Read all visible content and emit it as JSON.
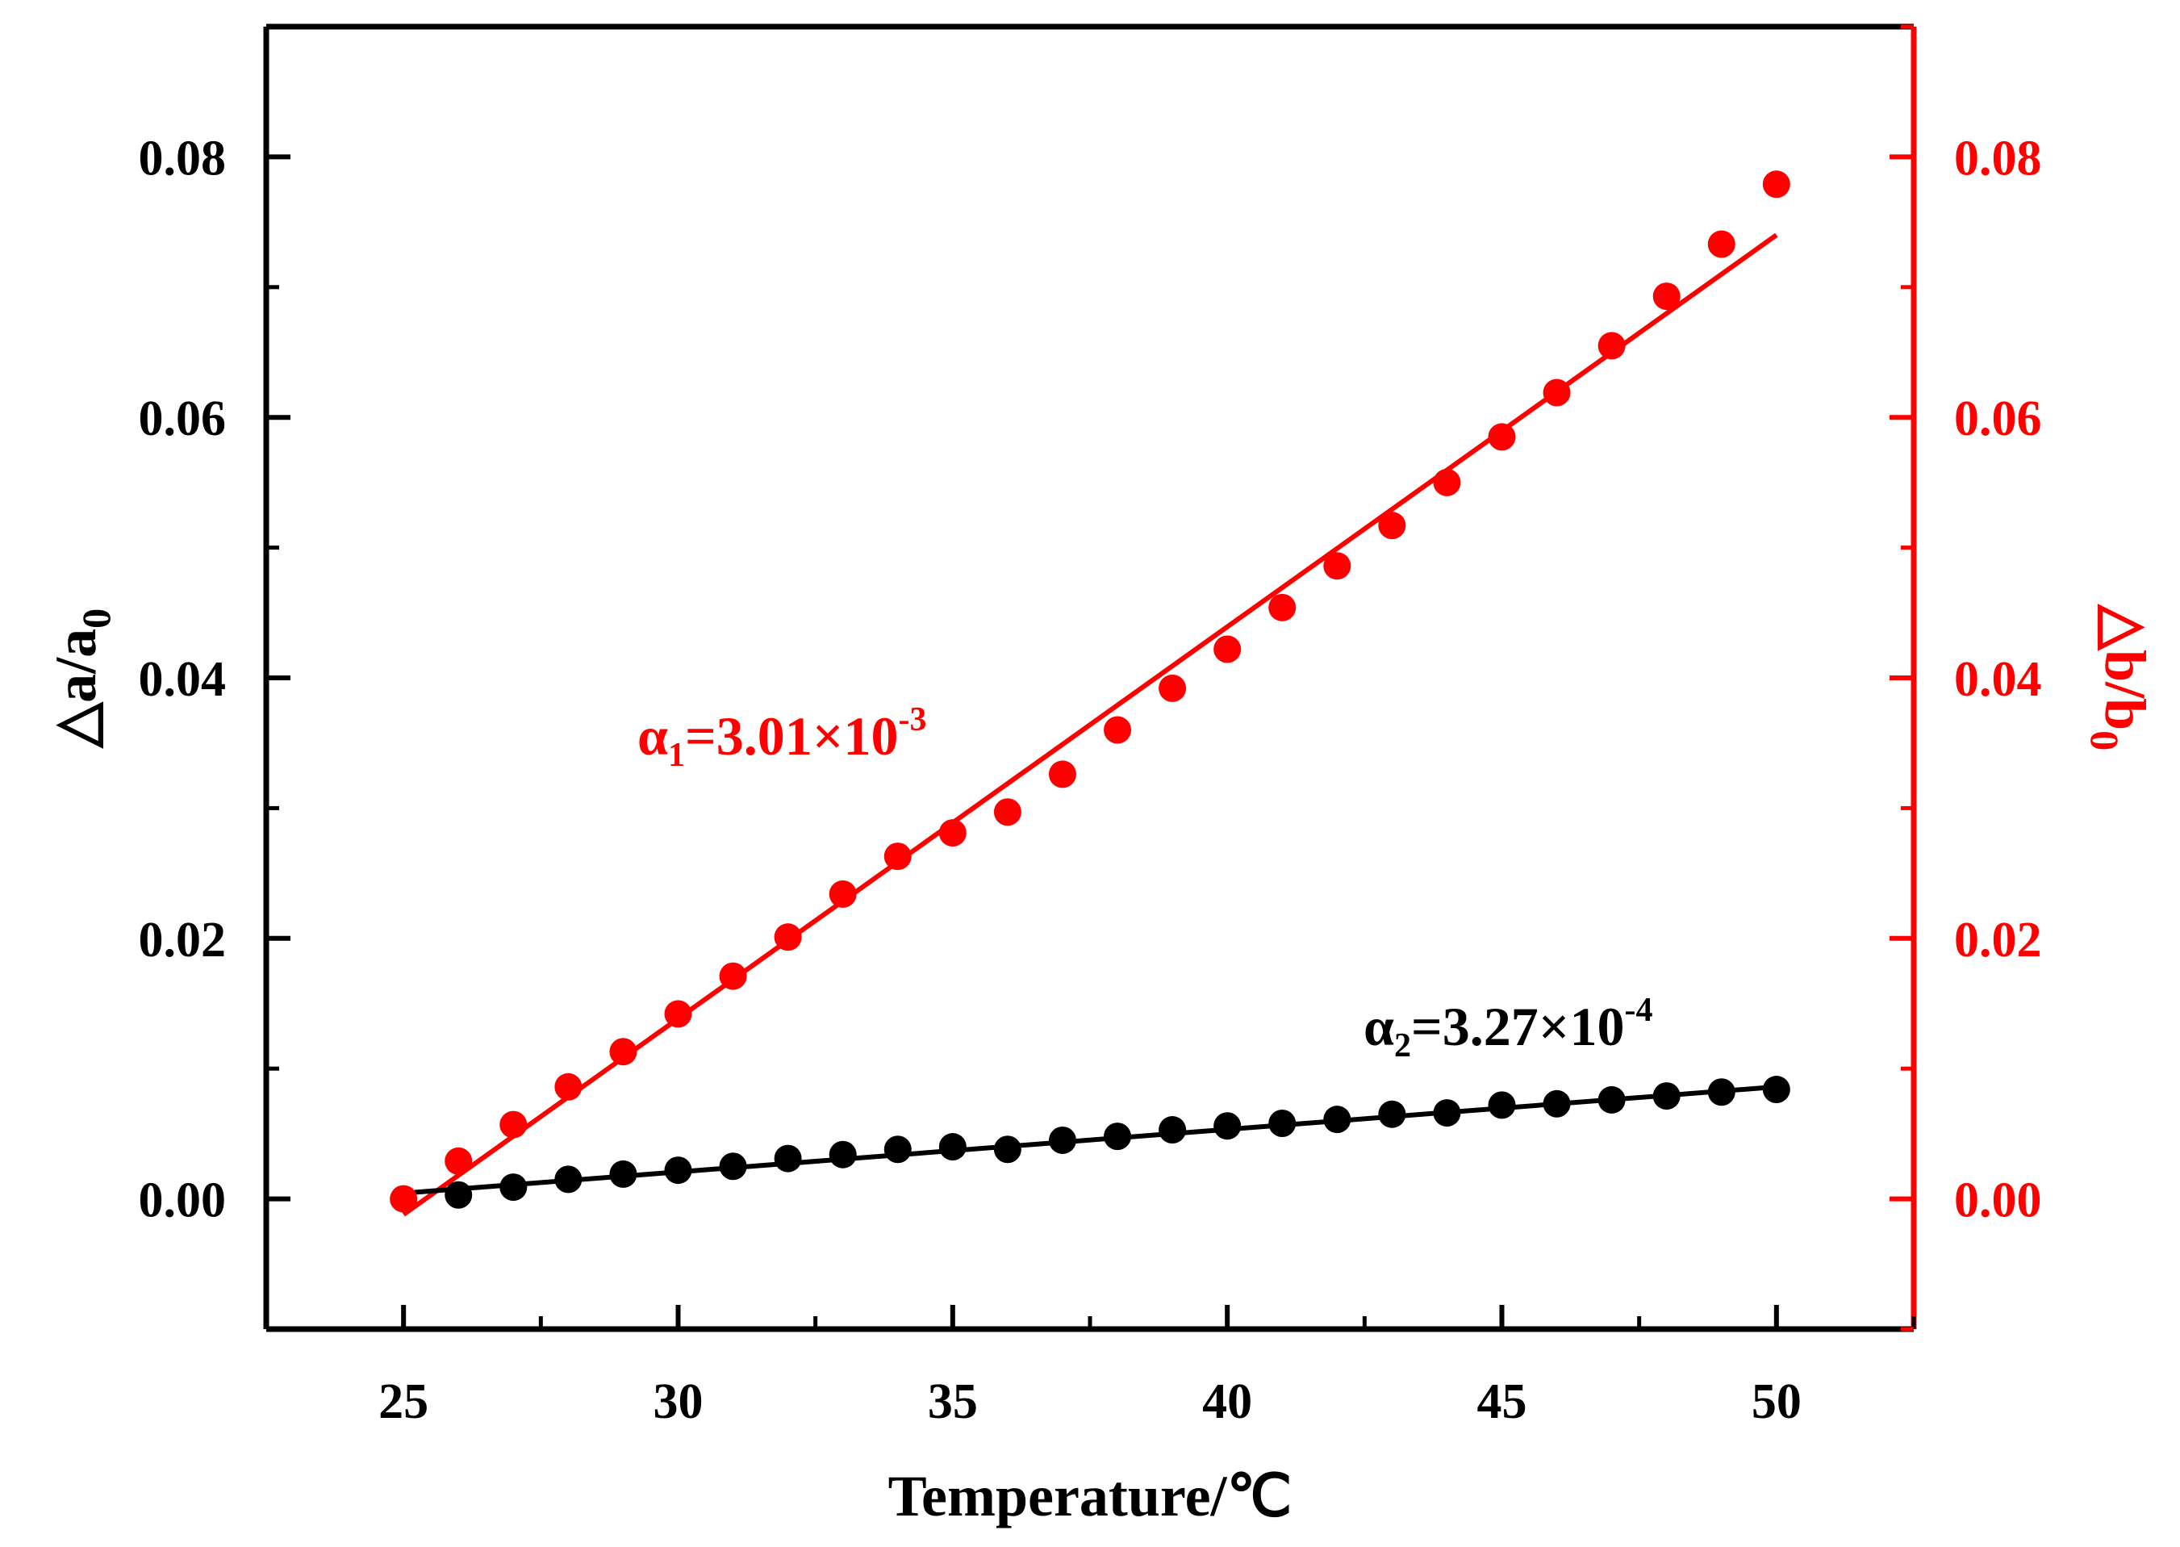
{
  "chart_data": {
    "type": "scatter",
    "title": "",
    "xlabel": "Temperature/℃",
    "ylabel_left": "△a/a",
    "ylabel_left_sub": "0",
    "ylabel_right": "△b/b",
    "ylabel_right_sub": "0",
    "xlim": [
      22.5,
      52.5
    ],
    "ylim": [
      -0.01,
      0.09
    ],
    "x_ticks": [
      25,
      30,
      35,
      40,
      45,
      50
    ],
    "x_tick_labels": [
      "25",
      "30",
      "35",
      "40",
      "45",
      "50"
    ],
    "y_ticks": [
      0.0,
      0.02,
      0.04,
      0.06,
      0.08
    ],
    "y_tick_labels_left": [
      "0.00",
      "0.02",
      "0.04",
      "0.06",
      "0.08"
    ],
    "y_tick_labels_right": [
      "0.00",
      "0.02",
      "0.04",
      "0.06",
      "0.08"
    ],
    "colors": {
      "black_series": "#000000",
      "red_series": "#ff0000"
    },
    "series": [
      {
        "name": "Δb/b0",
        "axis": "right",
        "color": "#ff0000",
        "x": [
          25,
          26,
          27,
          28,
          29,
          30,
          31,
          32,
          33,
          34,
          35,
          36,
          37,
          38,
          39,
          40,
          41,
          42,
          43,
          44,
          45,
          46,
          47,
          48,
          49,
          50
        ],
        "y": [
          0.0,
          0.0029,
          0.0057,
          0.0086,
          0.0113,
          0.0142,
          0.0171,
          0.0201,
          0.0234,
          0.0263,
          0.0281,
          0.0297,
          0.0326,
          0.036,
          0.0392,
          0.0422,
          0.0454,
          0.0486,
          0.0517,
          0.055,
          0.0585,
          0.0619,
          0.0655,
          0.0693,
          0.0733,
          0.0779
        ],
        "fit": {
          "x": [
            25,
            50
          ],
          "y": [
            -0.0012,
            0.074
          ]
        }
      },
      {
        "name": "Δa/a0",
        "axis": "left",
        "color": "#000000",
        "x": [
          26,
          27,
          28,
          29,
          30,
          31,
          32,
          33,
          34,
          35,
          36,
          37,
          38,
          39,
          40,
          41,
          42,
          43,
          44,
          45,
          46,
          47,
          48,
          49,
          50
        ],
        "y": [
          0.0003,
          0.0009,
          0.0015,
          0.0019,
          0.0022,
          0.0025,
          0.0031,
          0.0034,
          0.0038,
          0.004,
          0.0038,
          0.0045,
          0.0048,
          0.0053,
          0.0056,
          0.0058,
          0.0061,
          0.0065,
          0.0066,
          0.0072,
          0.0073,
          0.0076,
          0.0079,
          0.0082,
          0.0084
        ],
        "fit": {
          "x": [
            25.2,
            50
          ],
          "y": [
            0.0005,
            0.0086
          ]
        }
      }
    ],
    "annotations": [
      {
        "id": "alpha1",
        "color": "#ff0000",
        "base": "α",
        "sub": "1",
        "main": "=3.01×10",
        "sup": "-3"
      },
      {
        "id": "alpha2",
        "color": "#000000",
        "base": "α",
        "sub": "2",
        "main": "=3.27×10",
        "sup": "-4"
      }
    ]
  }
}
